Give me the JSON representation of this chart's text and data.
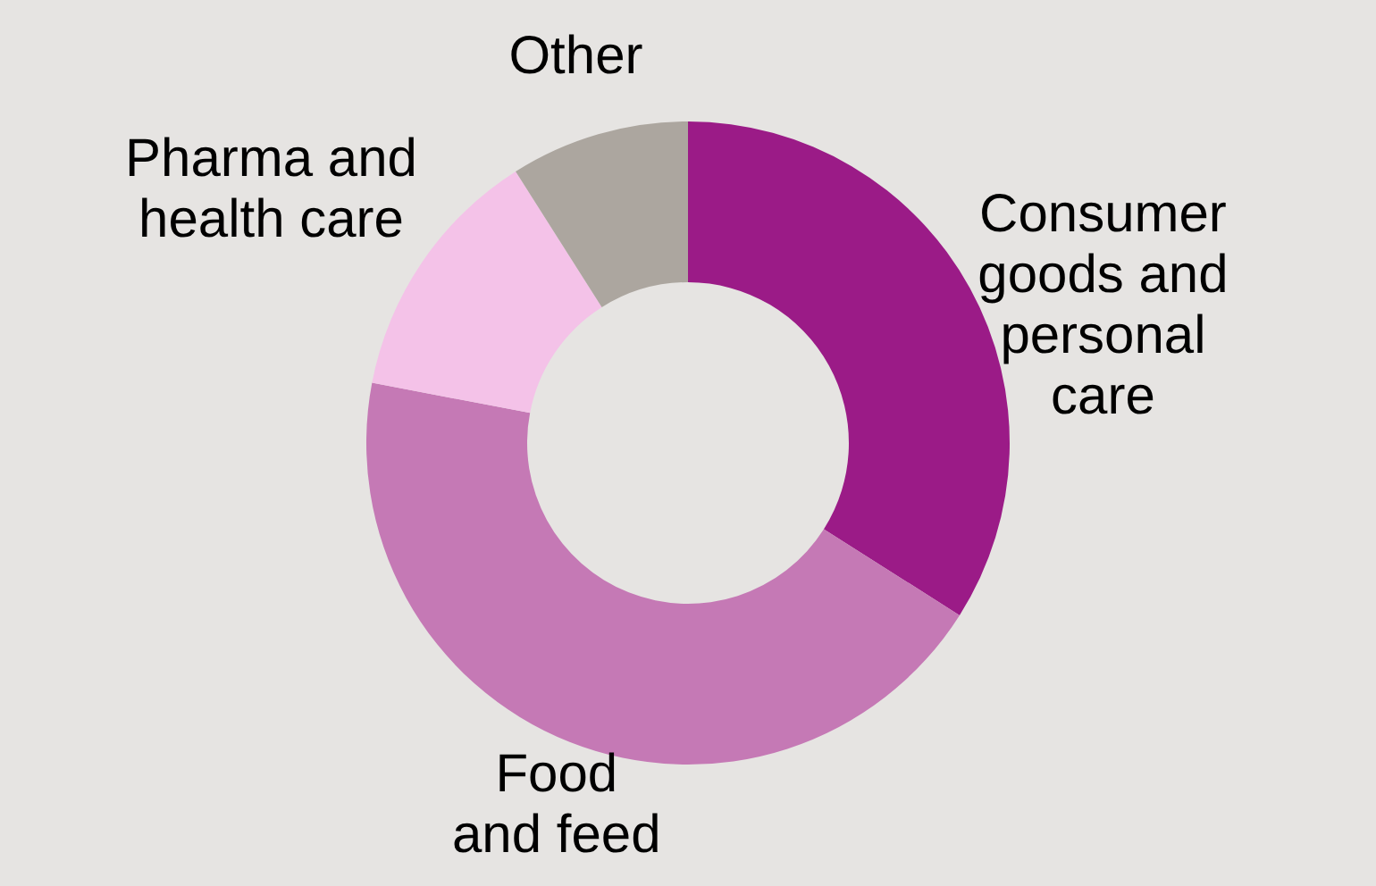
{
  "chart_data": {
    "type": "donut",
    "categories": [
      "Consumer goods and personal care",
      "Food and feed",
      "Pharma and health care",
      "Other"
    ],
    "values": [
      34,
      44,
      13,
      9
    ],
    "colors": [
      "#9b1b87",
      "#c579b5",
      "#f4c2e8",
      "#aca69f"
    ]
  }
}
